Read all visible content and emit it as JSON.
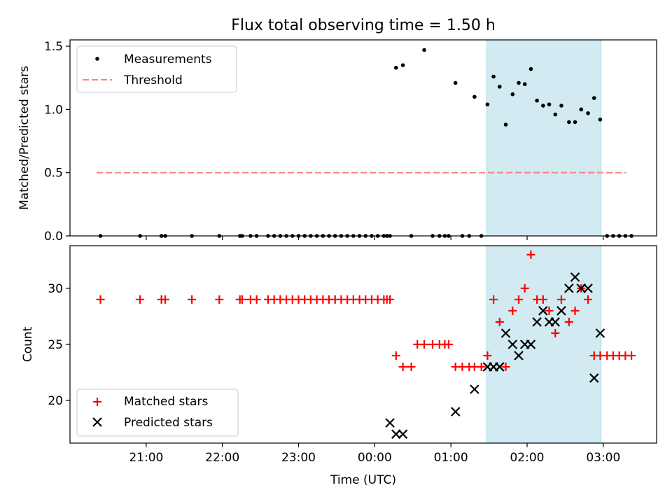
{
  "figure": {
    "title": "Flux total observing time = 1.50 h",
    "xlabel": "Time (UTC)",
    "xticks": [
      "21:00",
      "22:00",
      "23:00",
      "00:00",
      "01:00",
      "02:00",
      "03:00"
    ]
  },
  "chart_data": [
    {
      "type": "scatter",
      "title": "Flux total observing time = 1.50 h",
      "ylabel": "Matched/Predicted stars",
      "xlabel": "",
      "x_unit": "hours since 20:00 UTC",
      "xlim": [
        0.0,
        7.7
      ],
      "ylim": [
        0.0,
        1.55
      ],
      "yticks": [
        "0.0",
        "0.5",
        "1.0",
        "1.5"
      ],
      "legend": {
        "placement": "upper-left",
        "entries": [
          "Measurements",
          "Threshold"
        ]
      },
      "highlight_span": {
        "x": [
          5.47,
          6.97
        ],
        "color": "#add8e6"
      },
      "series": [
        {
          "name": "Measurements",
          "marker": "dot",
          "color": "#000000",
          "x": [
            0.4,
            0.92,
            1.2,
            1.25,
            1.6,
            1.96,
            2.23,
            2.26,
            2.37,
            2.45,
            2.6,
            2.68,
            2.76,
            2.84,
            2.92,
            3.0,
            3.08,
            3.16,
            3.24,
            3.32,
            3.4,
            3.48,
            3.56,
            3.64,
            3.72,
            3.8,
            3.88,
            3.96,
            4.04,
            4.12,
            4.16,
            4.2,
            4.28,
            4.37,
            4.48,
            4.65,
            4.76,
            4.85,
            4.92,
            4.97,
            5.06,
            5.15,
            5.24,
            5.31,
            5.4,
            5.48,
            5.56,
            5.64,
            5.72,
            5.81,
            5.89,
            5.97,
            6.05,
            6.13,
            6.21,
            6.29,
            6.37,
            6.45,
            6.55,
            6.63,
            6.71,
            6.8,
            6.88,
            6.96,
            7.05,
            7.13,
            7.21,
            7.29,
            7.37
          ],
          "y": [
            0,
            0,
            0,
            0,
            0,
            0,
            0,
            0,
            0,
            0,
            0,
            0,
            0,
            0,
            0,
            0,
            0,
            0,
            0,
            0,
            0,
            0,
            0,
            0,
            0,
            0,
            0,
            0,
            0,
            0,
            0,
            0,
            1.33,
            1.35,
            0,
            1.47,
            0,
            0,
            0,
            0,
            1.21,
            0,
            0,
            1.1,
            0,
            1.04,
            1.26,
            1.18,
            0.88,
            1.12,
            1.21,
            1.2,
            1.32,
            1.07,
            1.03,
            1.04,
            0.96,
            1.03,
            0.9,
            0.9,
            1.0,
            0.97,
            1.09,
            0.92,
            0,
            0,
            0,
            0,
            0
          ]
        },
        {
          "name": "Threshold",
          "marker": "dashed-line",
          "color": "#ff8080",
          "x": [
            0.35,
            7.3
          ],
          "y": [
            0.5,
            0.5
          ]
        }
      ]
    },
    {
      "type": "scatter",
      "title": "",
      "ylabel": "Count",
      "xlabel": "Time (UTC)",
      "x_unit": "hours since 20:00 UTC",
      "xlim": [
        0.0,
        7.7
      ],
      "ylim": [
        16.2,
        33.8
      ],
      "yticks": [
        "20",
        "25",
        "30"
      ],
      "legend": {
        "placement": "lower-left",
        "entries": [
          "Matched stars",
          "Predicted stars"
        ]
      },
      "highlight_span": {
        "x": [
          5.47,
          6.97
        ],
        "color": "#add8e6"
      },
      "series": [
        {
          "name": "Matched stars",
          "marker": "plus",
          "color": "#ff0000",
          "x": [
            0.4,
            0.92,
            1.2,
            1.25,
            1.6,
            1.96,
            2.23,
            2.26,
            2.37,
            2.45,
            2.6,
            2.68,
            2.76,
            2.84,
            2.92,
            3.0,
            3.08,
            3.16,
            3.24,
            3.32,
            3.4,
            3.48,
            3.56,
            3.64,
            3.72,
            3.8,
            3.88,
            3.96,
            4.04,
            4.12,
            4.16,
            4.2,
            4.28,
            4.37,
            4.48,
            4.56,
            4.65,
            4.76,
            4.85,
            4.92,
            4.97,
            5.06,
            5.15,
            5.24,
            5.31,
            5.4,
            5.48,
            5.56,
            5.64,
            5.72,
            5.81,
            5.89,
            5.97,
            6.05,
            6.13,
            6.21,
            6.29,
            6.37,
            6.45,
            6.55,
            6.63,
            6.71,
            6.8,
            6.88,
            6.96,
            7.05,
            7.13,
            7.21,
            7.29,
            7.37
          ],
          "y": [
            29,
            29,
            29,
            29,
            29,
            29,
            29,
            29,
            29,
            29,
            29,
            29,
            29,
            29,
            29,
            29,
            29,
            29,
            29,
            29,
            29,
            29,
            29,
            29,
            29,
            29,
            29,
            29,
            29,
            29,
            29,
            29,
            24,
            23,
            23,
            25,
            25,
            25,
            25,
            25,
            25,
            23,
            23,
            23,
            23,
            23,
            24,
            29,
            27,
            23,
            28,
            29,
            30,
            33,
            29,
            29,
            28,
            26,
            29,
            27,
            28,
            30,
            29,
            24,
            24,
            24,
            24,
            24,
            24,
            24
          ]
        },
        {
          "name": "Predicted stars",
          "marker": "x",
          "color": "#000000",
          "x": [
            4.2,
            4.28,
            4.37,
            5.06,
            5.31,
            5.48,
            5.56,
            5.64,
            5.72,
            5.81,
            5.89,
            5.97,
            6.05,
            6.13,
            6.21,
            6.29,
            6.37,
            6.45,
            6.55,
            6.63,
            6.71,
            6.8,
            6.88,
            6.96
          ],
          "y": [
            18,
            17,
            17,
            19,
            21,
            23,
            23,
            23,
            26,
            25,
            24,
            25,
            25,
            27,
            28,
            27,
            27,
            28,
            30,
            31,
            30,
            30,
            22,
            26
          ]
        }
      ]
    }
  ]
}
